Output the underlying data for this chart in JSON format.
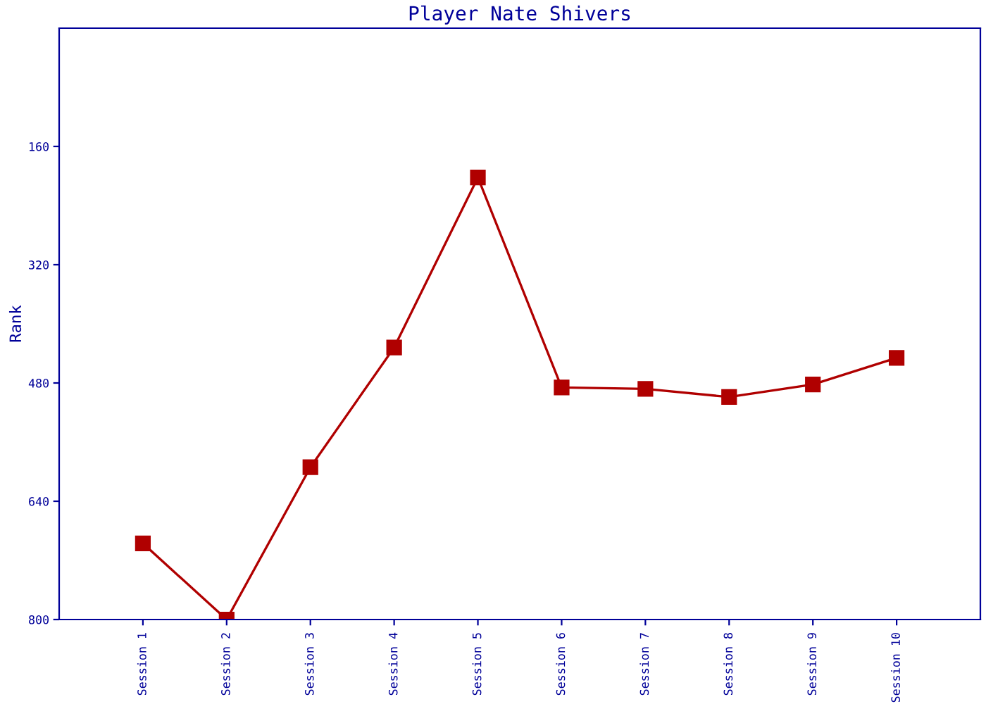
{
  "chart_data": {
    "type": "line",
    "title": "Player Nate Shivers",
    "ylabel": "Rank",
    "categories": [
      "Session 1",
      "Session 2",
      "Session 3",
      "Session 4",
      "Session 5",
      "Session 6",
      "Session 7",
      "Session 8",
      "Session 9",
      "Session 10"
    ],
    "series": [
      {
        "color": "#b00000",
        "values": [
          697,
          800,
          594,
          432,
          202,
          486,
          488,
          499,
          482,
          446
        ]
      }
    ],
    "ylim": [
      800,
      0
    ],
    "yticks": [
      160,
      320,
      480,
      640,
      800
    ],
    "marker": "square",
    "line_style": "solid",
    "grid": false,
    "legend": false
  }
}
